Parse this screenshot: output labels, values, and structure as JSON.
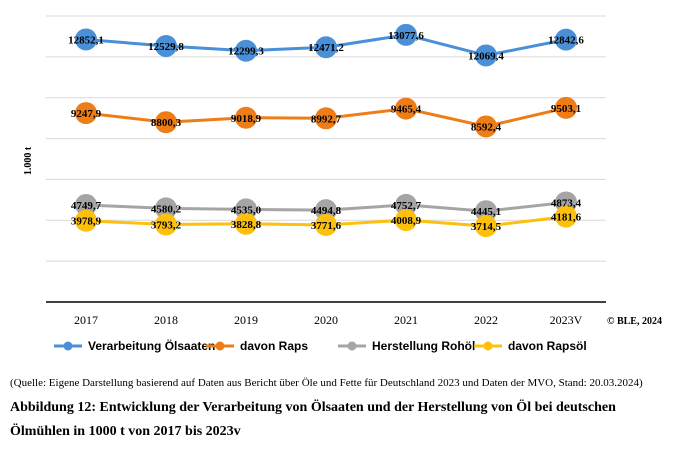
{
  "chart_data": {
    "type": "line",
    "categories": [
      "2017",
      "2018",
      "2019",
      "2020",
      "2021",
      "2022",
      "2023V"
    ],
    "ylabel": "1.000 t",
    "legend_position": "bottom",
    "grid": true,
    "series": [
      {
        "name": "Verarbeitung Ölsaaten",
        "color": "#4a90d9",
        "values": [
          12852.1,
          12529.8,
          12299.3,
          12471.2,
          13077.6,
          12069.4,
          12842.6
        ],
        "labels": [
          "12852,1",
          "12529,8",
          "12299,3",
          "12471,2",
          "13077,6",
          "12069,4",
          "12842,6"
        ]
      },
      {
        "name": "davon Raps",
        "color": "#ee7d17",
        "values": [
          9247.9,
          8800.3,
          9018.9,
          8992.7,
          9465.4,
          8592.4,
          9503.1
        ],
        "labels": [
          "9247,9",
          "8800,3",
          "9018,9",
          "8992,7",
          "9465,4",
          "8592,4",
          "9503,1"
        ]
      },
      {
        "name": "Herstellung Rohöl",
        "color": "#a5a5a5",
        "values": [
          4749.7,
          4580.2,
          4535.0,
          4494.8,
          4752.7,
          4445.1,
          4873.4
        ],
        "labels": [
          "4749,7",
          "4580,2",
          "4535,0",
          "4494,8",
          "4752,7",
          "4445,1",
          "4873,4"
        ]
      },
      {
        "name": "davon Rapsöl",
        "color": "#fcc00d",
        "values": [
          3978.9,
          3793.2,
          3828.8,
          3771.6,
          4008.9,
          3714.5,
          4181.6
        ],
        "labels": [
          "3978,9",
          "3793,2",
          "3828,8",
          "3771,6",
          "4008,9",
          "3714,5",
          "4181,6"
        ]
      }
    ]
  },
  "copyright": "© BLE, 2024",
  "source": "(Quelle: Eigene Darstellung basierend auf Daten aus Bericht über Öle und Fette für Deutschland 2023 und Daten der MVO, Stand: 20.03.2024)",
  "caption": "Abbildung 12: Entwicklung der Verarbeitung von Ölsaaten und der Herstellung von Öl bei deutschen Ölmühlen in 1000 t von 2017 bis 2023v"
}
